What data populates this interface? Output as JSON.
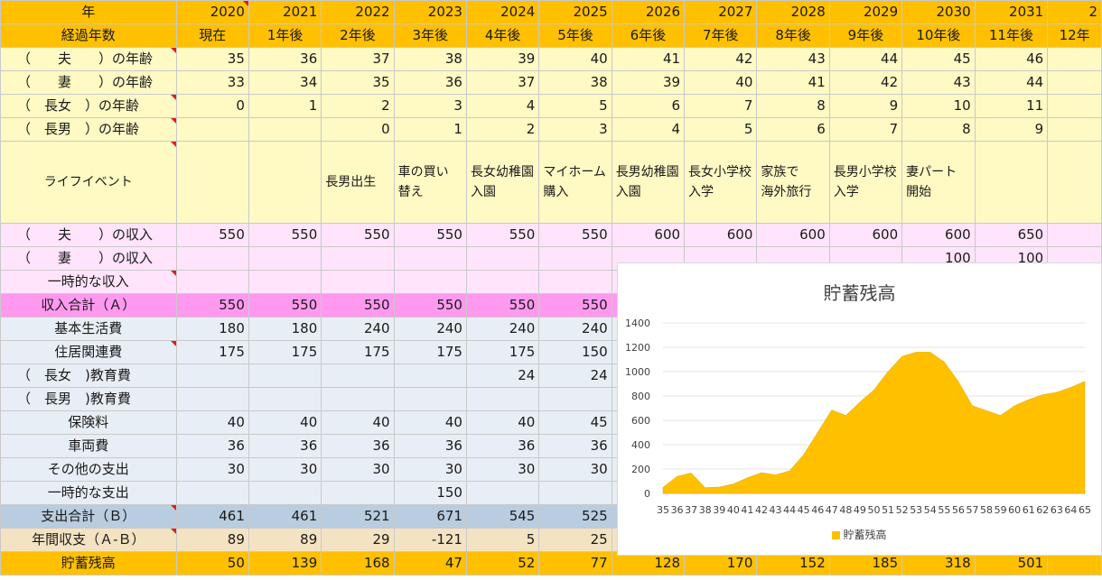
{
  "columns": [
    "2020",
    "2021",
    "2022",
    "2023",
    "2024",
    "2025",
    "2026",
    "2027",
    "2028",
    "2029",
    "2030",
    "2031",
    "2"
  ],
  "rows": [
    {
      "key": "year",
      "cls": "r-year",
      "label": "年",
      "values": [
        "2020",
        "2021",
        "2022",
        "2023",
        "2024",
        "2025",
        "2026",
        "2027",
        "2028",
        "2029",
        "2030",
        "2031",
        "2"
      ]
    },
    {
      "key": "elapsed",
      "cls": "r-elapsed",
      "label": "経過年数",
      "values": [
        "現在",
        "1年後",
        "2年後",
        "3年後",
        "4年後",
        "5年後",
        "6年後",
        "7年後",
        "8年後",
        "9年後",
        "10年後",
        "11年後",
        "12年"
      ]
    },
    {
      "key": "husband_age",
      "cls": "r-age",
      "label": "（　　夫　　）の年齢",
      "values": [
        "35",
        "36",
        "37",
        "38",
        "39",
        "40",
        "41",
        "42",
        "43",
        "44",
        "45",
        "46",
        ""
      ]
    },
    {
      "key": "wife_age",
      "cls": "r-age",
      "label": "（　　妻　　）の年齢",
      "values": [
        "33",
        "34",
        "35",
        "36",
        "37",
        "38",
        "39",
        "40",
        "41",
        "42",
        "43",
        "44",
        ""
      ]
    },
    {
      "key": "daughter_age",
      "cls": "r-age",
      "label": "（　長女　）の年齢",
      "values": [
        "0",
        "1",
        "2",
        "3",
        "4",
        "5",
        "6",
        "7",
        "8",
        "9",
        "10",
        "11",
        ""
      ]
    },
    {
      "key": "son_age",
      "cls": "r-age",
      "label": "（　長男　）の年齢",
      "values": [
        "",
        "",
        "0",
        "1",
        "2",
        "3",
        "4",
        "5",
        "6",
        "7",
        "8",
        "9",
        ""
      ]
    },
    {
      "key": "life_event",
      "cls": "r-event",
      "label": "ライフイベント",
      "values": [
        "",
        "",
        "長男出生",
        "車の買い\n替え",
        "長女幼稚園\n入園",
        "マイホーム\n購入",
        "長男幼稚園\n入園",
        "長女小学校\n入学",
        "家族で\n海外旅行",
        "長男小学校\n入学",
        "妻パート\n開始",
        "",
        ""
      ]
    },
    {
      "key": "husband_income",
      "cls": "r-inc",
      "label": "（　　夫　　）の収入",
      "values": [
        "550",
        "550",
        "550",
        "550",
        "550",
        "550",
        "600",
        "600",
        "600",
        "600",
        "600",
        "650",
        ""
      ]
    },
    {
      "key": "wife_income",
      "cls": "r-inc",
      "label": "（　　妻　　）の収入",
      "values": [
        "",
        "",
        "",
        "",
        "",
        "",
        "",
        "",
        "",
        "",
        "100",
        "100",
        ""
      ]
    },
    {
      "key": "temp_income",
      "cls": "r-inc",
      "label": "一時的な収入",
      "values": [
        "",
        "",
        "",
        "",
        "",
        "",
        "",
        "",
        "",
        "",
        "",
        "",
        ""
      ]
    },
    {
      "key": "income_total",
      "cls": "r-inctot",
      "label": "収入合計（Ａ）",
      "values": [
        "550",
        "550",
        "550",
        "550",
        "550",
        "550",
        "",
        "",
        "",
        "",
        "",
        "",
        ""
      ]
    },
    {
      "key": "living",
      "cls": "r-exp",
      "label": "基本生活費",
      "values": [
        "180",
        "180",
        "240",
        "240",
        "240",
        "240",
        "",
        "",
        "",
        "",
        "",
        "",
        ""
      ]
    },
    {
      "key": "housing",
      "cls": "r-exp",
      "label": "住居関連費",
      "values": [
        "175",
        "175",
        "175",
        "175",
        "175",
        "150",
        "",
        "",
        "",
        "",
        "",
        "",
        ""
      ]
    },
    {
      "key": "edu_daughter",
      "cls": "r-exp",
      "label": "（　長女　)教育費",
      "values": [
        "",
        "",
        "",
        "",
        "24",
        "24",
        "",
        "",
        "",
        "",
        "",
        "",
        ""
      ]
    },
    {
      "key": "edu_son",
      "cls": "r-exp",
      "label": "（　長男　)教育費",
      "values": [
        "",
        "",
        "",
        "",
        "",
        "",
        "",
        "",
        "",
        "",
        "",
        "",
        ""
      ]
    },
    {
      "key": "insurance",
      "cls": "r-exp",
      "label": "保険料",
      "values": [
        "40",
        "40",
        "40",
        "40",
        "40",
        "45",
        "",
        "",
        "",
        "",
        "",
        "",
        ""
      ]
    },
    {
      "key": "vehicle",
      "cls": "r-exp",
      "label": "車両費",
      "values": [
        "36",
        "36",
        "36",
        "36",
        "36",
        "36",
        "",
        "",
        "",
        "",
        "",
        "",
        ""
      ]
    },
    {
      "key": "other",
      "cls": "r-exp",
      "label": "その他の支出",
      "values": [
        "30",
        "30",
        "30",
        "30",
        "30",
        "30",
        "",
        "",
        "",
        "",
        "",
        "",
        ""
      ]
    },
    {
      "key": "temp_expense",
      "cls": "r-exp",
      "label": "一時的な支出",
      "values": [
        "",
        "",
        "",
        "150",
        "",
        "",
        "",
        "",
        "",
        "",
        "",
        "",
        ""
      ]
    },
    {
      "key": "expense_total",
      "cls": "r-exptot",
      "label": "支出合計（Ｂ）",
      "values": [
        "461",
        "461",
        "521",
        "671",
        "545",
        "525",
        "",
        "",
        "",
        "",
        "",
        "",
        ""
      ]
    },
    {
      "key": "annual_balance",
      "cls": "r-annual",
      "label": "年間収支（Ａ-Ｂ）",
      "values": [
        "89",
        "89",
        "29",
        "-121",
        "5",
        "25",
        "",
        "",
        "",
        "",
        "",
        "",
        ""
      ]
    },
    {
      "key": "savings",
      "cls": "r-savings",
      "label": "貯蓄残高",
      "values": [
        "50",
        "139",
        "168",
        "47",
        "52",
        "77",
        "128",
        "170",
        "152",
        "185",
        "318",
        "501",
        ""
      ]
    }
  ],
  "chart_data": {
    "type": "area",
    "title": "貯蓄残高",
    "legend": "貯蓄残高",
    "legend_position": "bottom",
    "color": "#ffc000",
    "ylim": [
      0,
      1400
    ],
    "yticks": [
      0,
      200,
      400,
      600,
      800,
      1000,
      1200,
      1400
    ],
    "grid": true,
    "x": [
      35,
      36,
      37,
      38,
      39,
      40,
      41,
      42,
      43,
      44,
      45,
      46,
      47,
      48,
      49,
      50,
      51,
      52,
      53,
      54,
      55,
      56,
      57,
      58,
      59,
      60,
      61,
      62,
      63,
      64,
      65
    ],
    "values": [
      50,
      139,
      168,
      47,
      52,
      77,
      128,
      170,
      152,
      185,
      318,
      501,
      685,
      640,
      750,
      850,
      1000,
      1125,
      1160,
      1160,
      1080,
      920,
      720,
      680,
      640,
      720,
      770,
      810,
      830,
      870,
      920
    ]
  }
}
